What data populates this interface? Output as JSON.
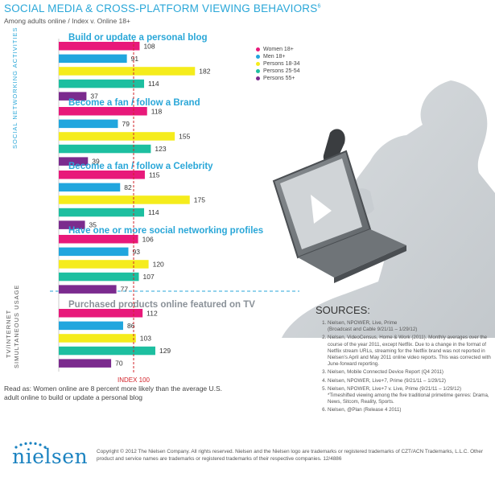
{
  "title": "SOCIAL MEDIA & CROSS-PLATFORM VIEWING BEHAVIORS",
  "title_sup": "6",
  "subtitle": "Among adults online / Index v. Online 18+",
  "vertical_labels": {
    "social": "SOCIAL NETWORKING ACTIVITIES",
    "tv_line1": "TV/INTERNET",
    "tv_line2": "SIMULTANEOUS USAGE"
  },
  "index_label": "INDEX 100",
  "footnote": "Read as: Women online are 8 percent more likely than the average U.S. adult online to build or update a personal blog",
  "sources": {
    "title": "SOURCES:",
    "items": [
      "Nielsen, NPOWER, Live, Prime\n(Broadcast and Cable 9/21/11 – 1/29/12)",
      "Nielsen, VideoCensus, Home & Work (2011). Monthly averages over the course of the year 2011, except Netflix. Due to a change in the format of Netflix stream URLs, streaming for the Netflix brand was not reported in Nielsen's April and May 2011 online video reports. This was corrected with June-forward reporting.",
      "Nielsen, Mobile Connected Device Report (Q4 2011)",
      "Nielsen, NPOWER, Live+7, Prime (9/21/11 – 1/29/12)",
      "Nielsen, NPOWER, Live+7 v. Live, Prime (9/21/11 – 1/29/12)\n*Timeshifted viewing among the five traditional primetime genres: Drama, News, Sitcom, Reality, Sports.",
      "Nielsen, @Plan (Release 4 2011)"
    ]
  },
  "logo": "nielsen",
  "copyright": "Copyright © 2012 The Nielsen Company. All rights reserved. Nielsen and the Nielsen logo are trademarks or registered trademarks of CZT/ACN Trademarks, L.L.C. Other product and service names are trademarks or registered trademarks of their respective companies. 12/4886",
  "colors": {
    "accent": "#2aa7d8",
    "index_line": "#d2232a",
    "women": "#e8197a",
    "men": "#21a6de",
    "p18_34": "#f5ec1c",
    "p25_54": "#1dbfa0",
    "p55": "#7b2b8e"
  },
  "chart_data": {
    "type": "bar",
    "orientation": "horizontal",
    "reference_line": 100,
    "legend": [
      {
        "name": "Women 18+",
        "color": "#e8197a"
      },
      {
        "name": "Men 18+",
        "color": "#21a6de"
      },
      {
        "name": "Persons 18-34",
        "color": "#f5ec1c"
      },
      {
        "name": "Persons 25-54",
        "color": "#1dbfa0"
      },
      {
        "name": "Persons 55+",
        "color": "#7b2b8e"
      }
    ],
    "legend_position": "top-right",
    "groups": [
      {
        "label": "Build or update a personal blog",
        "values": [
          108,
          91,
          182,
          114,
          37
        ]
      },
      {
        "label": "Become a fan / follow a Brand",
        "values": [
          118,
          79,
          155,
          123,
          39
        ]
      },
      {
        "label": "Become a fan / follow a Celebrity",
        "values": [
          115,
          82,
          175,
          114,
          35
        ]
      },
      {
        "label": "Have one or more social networking profiles",
        "values": [
          106,
          93,
          120,
          107,
          77
        ]
      },
      {
        "label": "Purchased products online featured on TV",
        "values": [
          112,
          86,
          103,
          129,
          70
        ]
      }
    ]
  }
}
